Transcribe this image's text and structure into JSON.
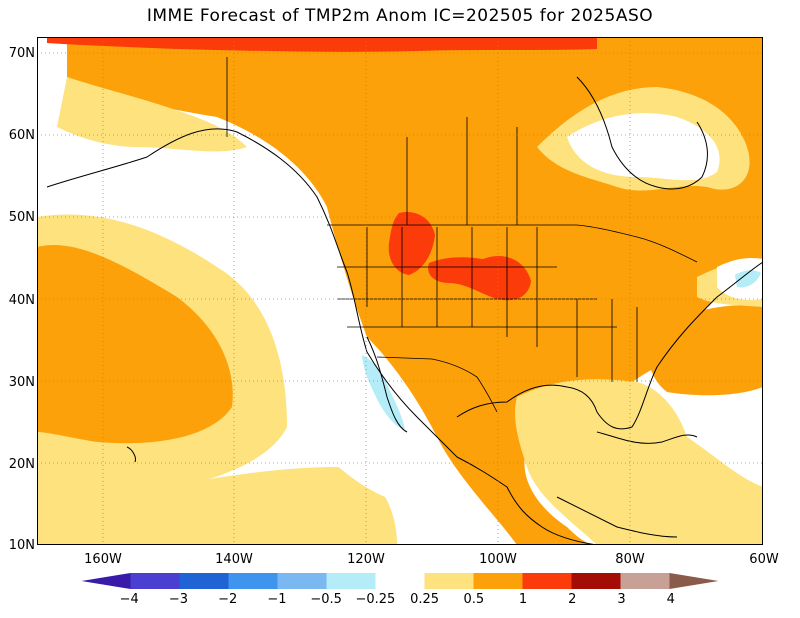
{
  "title": "IMME Forecast of TMP2m Anom IC=202505 for 2025ASO",
  "lat_labels": [
    "70N",
    "60N",
    "50N",
    "40N",
    "30N",
    "20N",
    "10N"
  ],
  "lon_labels": [
    "160W",
    "140W",
    "120W",
    "100W",
    "80W",
    "60W"
  ],
  "legend": {
    "labels": [
      "-4",
      "-3",
      "-2",
      "-1",
      "-0.5",
      "-0.25",
      "0.25",
      "0.5",
      "1",
      "2",
      "3",
      "4"
    ],
    "colors": [
      "#3a1aa8",
      "#4a3fd0",
      "#1f63d4",
      "#3f95ee",
      "#7ab8f2",
      "#b4ecf8",
      "#ffffff",
      "#fde27e",
      "#fca10a",
      "#fb3b0a",
      "#a40d06",
      "#c8a196",
      "#8a5a4a"
    ]
  },
  "map_colors": {
    "near_zero": "#ffffff",
    "slight_warm": "#fde27e",
    "warm": "#fca10a",
    "hot": "#fb3b0a",
    "slight_cool": "#b4ecf8"
  }
}
